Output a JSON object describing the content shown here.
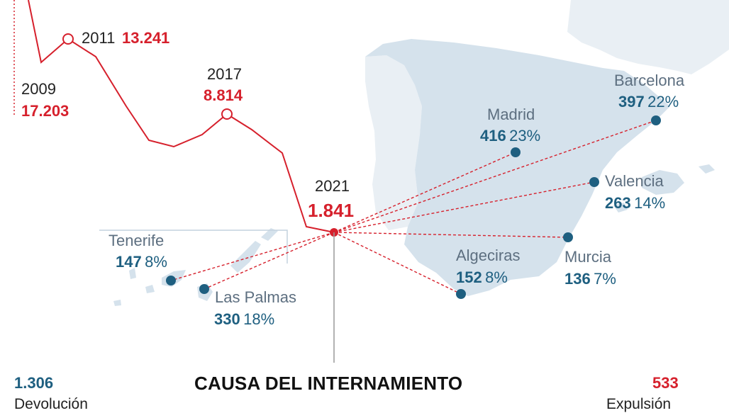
{
  "colors": {
    "land": "#d5e2ec",
    "land_light": "#e9eff4",
    "series_red": "#d6202c",
    "city_blue": "#1e5f80",
    "city_grey": "#5d6f80"
  },
  "series": {
    "annotations": [
      {
        "year": "2009",
        "value": "17.203"
      },
      {
        "year": "2011",
        "value": "13.241"
      },
      {
        "year": "2017",
        "value": "8.814"
      },
      {
        "year": "2021",
        "value": "1.841"
      }
    ]
  },
  "cities": [
    {
      "name": "Barcelona",
      "count": "397",
      "pct": "22%"
    },
    {
      "name": "Madrid",
      "count": "416",
      "pct": "23%"
    },
    {
      "name": "Valencia",
      "count": "263",
      "pct": "14%"
    },
    {
      "name": "Murcia",
      "count": "136",
      "pct": "7%"
    },
    {
      "name": "Algeciras",
      "count": "152",
      "pct": "8%"
    },
    {
      "name": "Tenerife",
      "count": "147",
      "pct": "8%"
    },
    {
      "name": "Las Palmas",
      "count": "330",
      "pct": "18%"
    }
  ],
  "footer": {
    "title": "CAUSA DEL INTERNAMIENTO",
    "left_value": "1.306",
    "left_label": "Devolución",
    "right_value": "533",
    "right_label": "Expulsión"
  }
}
